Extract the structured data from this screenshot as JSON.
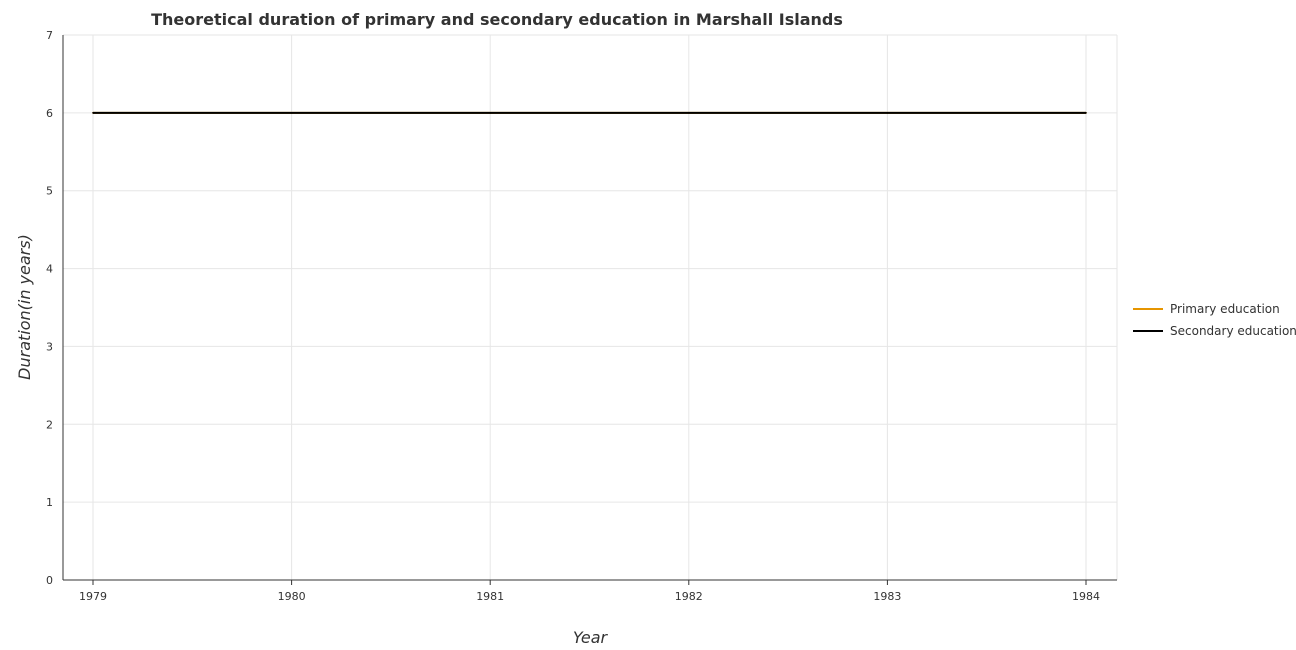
{
  "chart_data": {
    "type": "line",
    "title": "Theoretical duration of primary and secondary education in Marshall Islands",
    "xlabel": "Year",
    "ylabel": "Duration(in years)",
    "categories": [
      "1979",
      "1980",
      "1981",
      "1982",
      "1983",
      "1984"
    ],
    "ylim": [
      0,
      7
    ],
    "yticks": [
      "0",
      "1",
      "2",
      "3",
      "4",
      "5",
      "6",
      "7"
    ],
    "grid": true,
    "legend_position": "right",
    "series": [
      {
        "name": "Primary education",
        "color": "#e69500",
        "values": [
          6,
          6,
          6,
          6,
          6,
          6
        ]
      },
      {
        "name": "Secondary education",
        "color": "#000000",
        "values": [
          6,
          6,
          6,
          6,
          6,
          6
        ]
      }
    ]
  }
}
